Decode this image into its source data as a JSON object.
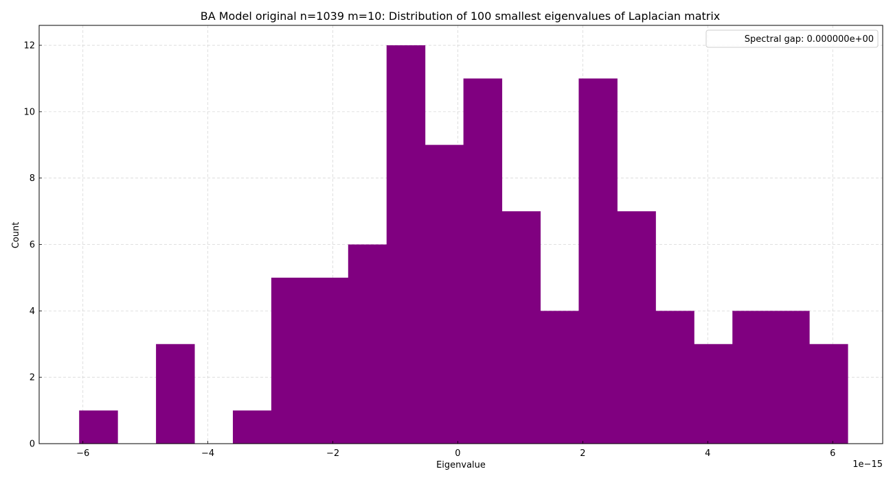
{
  "chart_data": {
    "type": "bar",
    "title": "BA Model original n=1039 m=10: Distribution of 100 smallest eigenvalues of Laplacian matrix",
    "xlabel": "Eigenvalue",
    "ylabel": "Count",
    "x_offset_label": "1e−15",
    "color": "#800080",
    "grid": true,
    "legend_placement": "top-right",
    "legend_text": "Spectral gap: 0.000000e+00",
    "xlim": [
      -6.7,
      6.8
    ],
    "ylim": [
      0,
      12.6
    ],
    "xticks": [
      -6,
      -4,
      -2,
      0,
      2,
      4,
      6
    ],
    "xtick_labels": [
      "−6",
      "−4",
      "−2",
      "0",
      "2",
      "4",
      "6"
    ],
    "yticks": [
      0,
      2,
      4,
      6,
      8,
      10,
      12
    ],
    "ytick_labels": [
      "0",
      "2",
      "4",
      "6",
      "8",
      "10",
      "12"
    ],
    "bin_edges": [
      -6.06,
      -5.445,
      -4.83,
      -4.215,
      -3.6,
      -2.985,
      -2.37,
      -1.755,
      -1.14,
      -0.525,
      0.09,
      0.705,
      1.32,
      1.935,
      2.55,
      3.165,
      3.78,
      4.395,
      5.01,
      5.625,
      6.24
    ],
    "values": [
      1,
      0,
      3,
      0,
      1,
      5,
      5,
      6,
      12,
      9,
      11,
      7,
      4,
      11,
      7,
      4,
      3,
      4,
      4,
      3
    ]
  }
}
